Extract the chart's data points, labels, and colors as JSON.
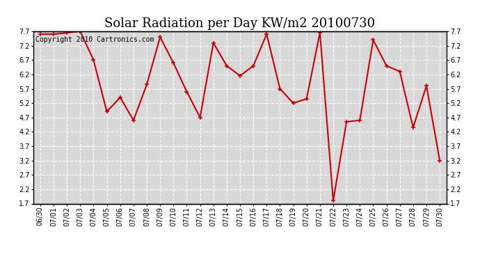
{
  "title": "Solar Radiation per Day KW/m2 20100730",
  "copyright": "Copyright 2010 Cartronics.com",
  "dates": [
    "06/30",
    "07/01",
    "07/02",
    "07/03",
    "07/04",
    "07/05",
    "07/06",
    "07/07",
    "07/08",
    "07/09",
    "07/10",
    "07/11",
    "07/12",
    "07/13",
    "07/14",
    "07/15",
    "07/16",
    "07/17",
    "07/18",
    "07/19",
    "07/20",
    "07/21",
    "07/22",
    "07/23",
    "07/24",
    "07/25",
    "07/26",
    "07/27",
    "07/28",
    "07/29",
    "07/30"
  ],
  "values": [
    7.6,
    7.6,
    7.65,
    7.7,
    6.7,
    4.9,
    5.4,
    4.6,
    5.85,
    7.5,
    6.6,
    5.6,
    4.7,
    7.3,
    6.5,
    6.15,
    6.5,
    7.6,
    5.7,
    5.2,
    5.35,
    7.65,
    1.8,
    4.55,
    4.6,
    7.4,
    6.5,
    6.3,
    4.35,
    5.8,
    3.2
  ],
  "line_color": "#cc0000",
  "marker": "+",
  "marker_size": 5,
  "marker_linewidth": 1.2,
  "line_width": 1.5,
  "background_color": "#ffffff",
  "plot_bg_color": "#d8d8d8",
  "grid_color": "#ffffff",
  "ylim": [
    1.7,
    7.7
  ],
  "yticks": [
    1.7,
    2.2,
    2.7,
    3.2,
    3.7,
    4.2,
    4.7,
    5.2,
    5.7,
    6.2,
    6.7,
    7.2,
    7.7
  ],
  "title_fontsize": 13,
  "copyright_fontsize": 7,
  "tick_fontsize": 7,
  "figsize": [
    6.9,
    3.75
  ],
  "dpi": 100
}
